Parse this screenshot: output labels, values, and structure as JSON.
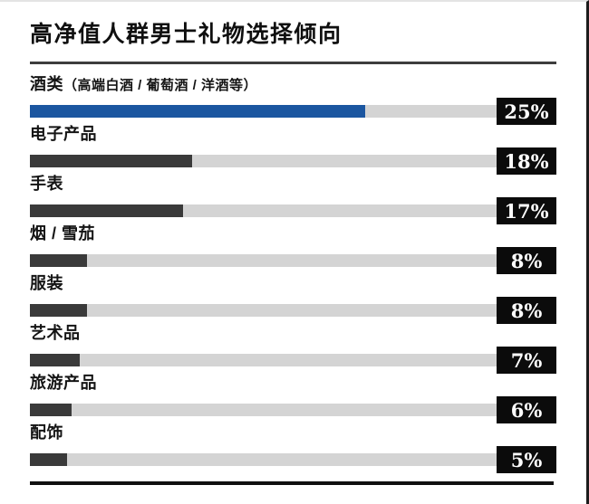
{
  "header": {
    "title": "高净值人群男士礼物选择倾向"
  },
  "colors": {
    "accent_blue": "#1b56a0",
    "bar_dark": "#3a3a3a",
    "track_gray": "#d4d4d4",
    "badge_bg": "#0b0b0b",
    "badge_text": "#ffffff",
    "rule_dark": "#3d3d3d",
    "text_black": "#141414"
  },
  "chart_data": {
    "type": "bar",
    "orientation": "horizontal",
    "title": "高净值人群男士礼物选择倾向",
    "unit": "%",
    "legend": "none",
    "grid": false,
    "categories": [
      "酒类（高端白酒 / 葡萄酒 / 洋酒等）",
      "电子产品",
      "手表",
      "烟 / 雪茄",
      "服装",
      "艺术品",
      "旅游产品",
      "配饰"
    ],
    "values": [
      25,
      18,
      17,
      8,
      8,
      7,
      6,
      5
    ],
    "bars": [
      {
        "label": "酒类",
        "sublabel": "（高端白酒 / 葡萄酒 / 洋酒等）",
        "value": 25,
        "value_label": "25%",
        "fill_fraction": 0.637,
        "color": "#1b56a0"
      },
      {
        "label": "电子产品",
        "sublabel": "",
        "value": 18,
        "value_label": "18%",
        "fill_fraction": 0.308,
        "color": "#3a3a3a"
      },
      {
        "label": "手表",
        "sublabel": "",
        "value": 17,
        "value_label": "17%",
        "fill_fraction": 0.291,
        "color": "#3a3a3a"
      },
      {
        "label": "烟 / 雪茄",
        "sublabel": "",
        "value": 8,
        "value_label": "8%",
        "fill_fraction": 0.108,
        "color": "#3a3a3a"
      },
      {
        "label": "服装",
        "sublabel": "",
        "value": 8,
        "value_label": "8%",
        "fill_fraction": 0.108,
        "color": "#3a3a3a"
      },
      {
        "label": "艺术品",
        "sublabel": "",
        "value": 7,
        "value_label": "7%",
        "fill_fraction": 0.095,
        "color": "#3a3a3a"
      },
      {
        "label": "旅游产品",
        "sublabel": "",
        "value": 6,
        "value_label": "6%",
        "fill_fraction": 0.08,
        "color": "#3a3a3a"
      },
      {
        "label": "配饰",
        "sublabel": "",
        "value": 5,
        "value_label": "5%",
        "fill_fraction": 0.07,
        "color": "#3a3a3a"
      }
    ]
  }
}
